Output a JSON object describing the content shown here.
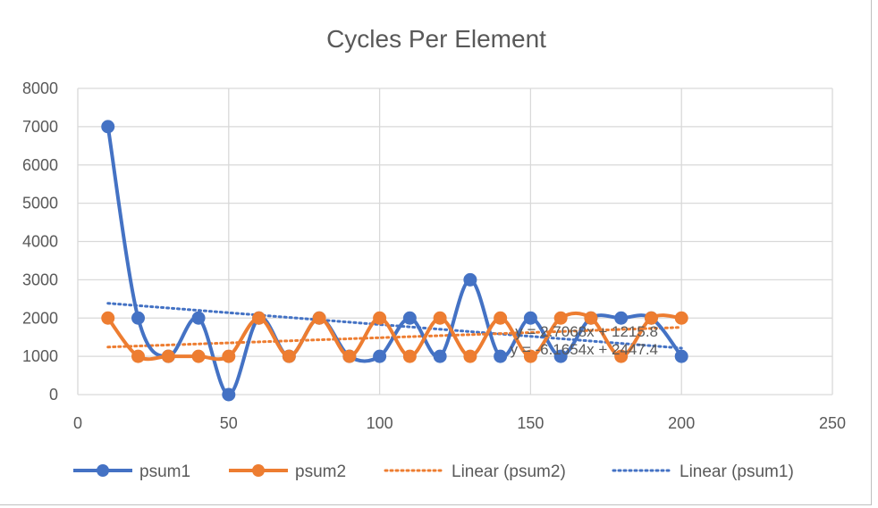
{
  "chart_data": {
    "type": "line",
    "title": "Cycles Per Element",
    "xlabel": "",
    "ylabel": "",
    "xlim": [
      0,
      250
    ],
    "ylim": [
      0,
      8000
    ],
    "x_ticks": [
      "0",
      "50",
      "100",
      "150",
      "200",
      "250"
    ],
    "y_ticks": [
      "0",
      "1000",
      "2000",
      "3000",
      "4000",
      "5000",
      "6000",
      "7000",
      "8000"
    ],
    "grid": true,
    "legend_position": "bottom",
    "x": [
      10,
      20,
      30,
      40,
      50,
      60,
      70,
      80,
      90,
      100,
      110,
      120,
      130,
      140,
      150,
      160,
      170,
      180,
      190,
      200
    ],
    "series": [
      {
        "name": "psum1",
        "color": "#4472C4",
        "smooth": true,
        "values": [
          7000,
          2000,
          1000,
          2000,
          0,
          2000,
          1000,
          2000,
          1000,
          1000,
          2000,
          1000,
          3000,
          1000,
          2000,
          1000,
          2000,
          2000,
          2000,
          1000
        ]
      },
      {
        "name": "psum2",
        "color": "#ED7D31",
        "smooth": true,
        "values": [
          2000,
          1000,
          1000,
          1000,
          1000,
          2000,
          1000,
          2000,
          1000,
          2000,
          1000,
          2000,
          1000,
          2000,
          1000,
          2000,
          2000,
          1000,
          2000,
          2000
        ]
      }
    ],
    "trendlines": [
      {
        "name": "Linear (psum1)",
        "color": "#4472C4",
        "slope": -6.1654,
        "intercept": 2447.4,
        "equation": "y = -6.1654x + 2447.4"
      },
      {
        "name": "Linear (psum2)",
        "color": "#ED7D31",
        "slope": 2.7068,
        "intercept": 1215.8,
        "equation": "y = 2.7068x + 1215.8"
      }
    ]
  }
}
